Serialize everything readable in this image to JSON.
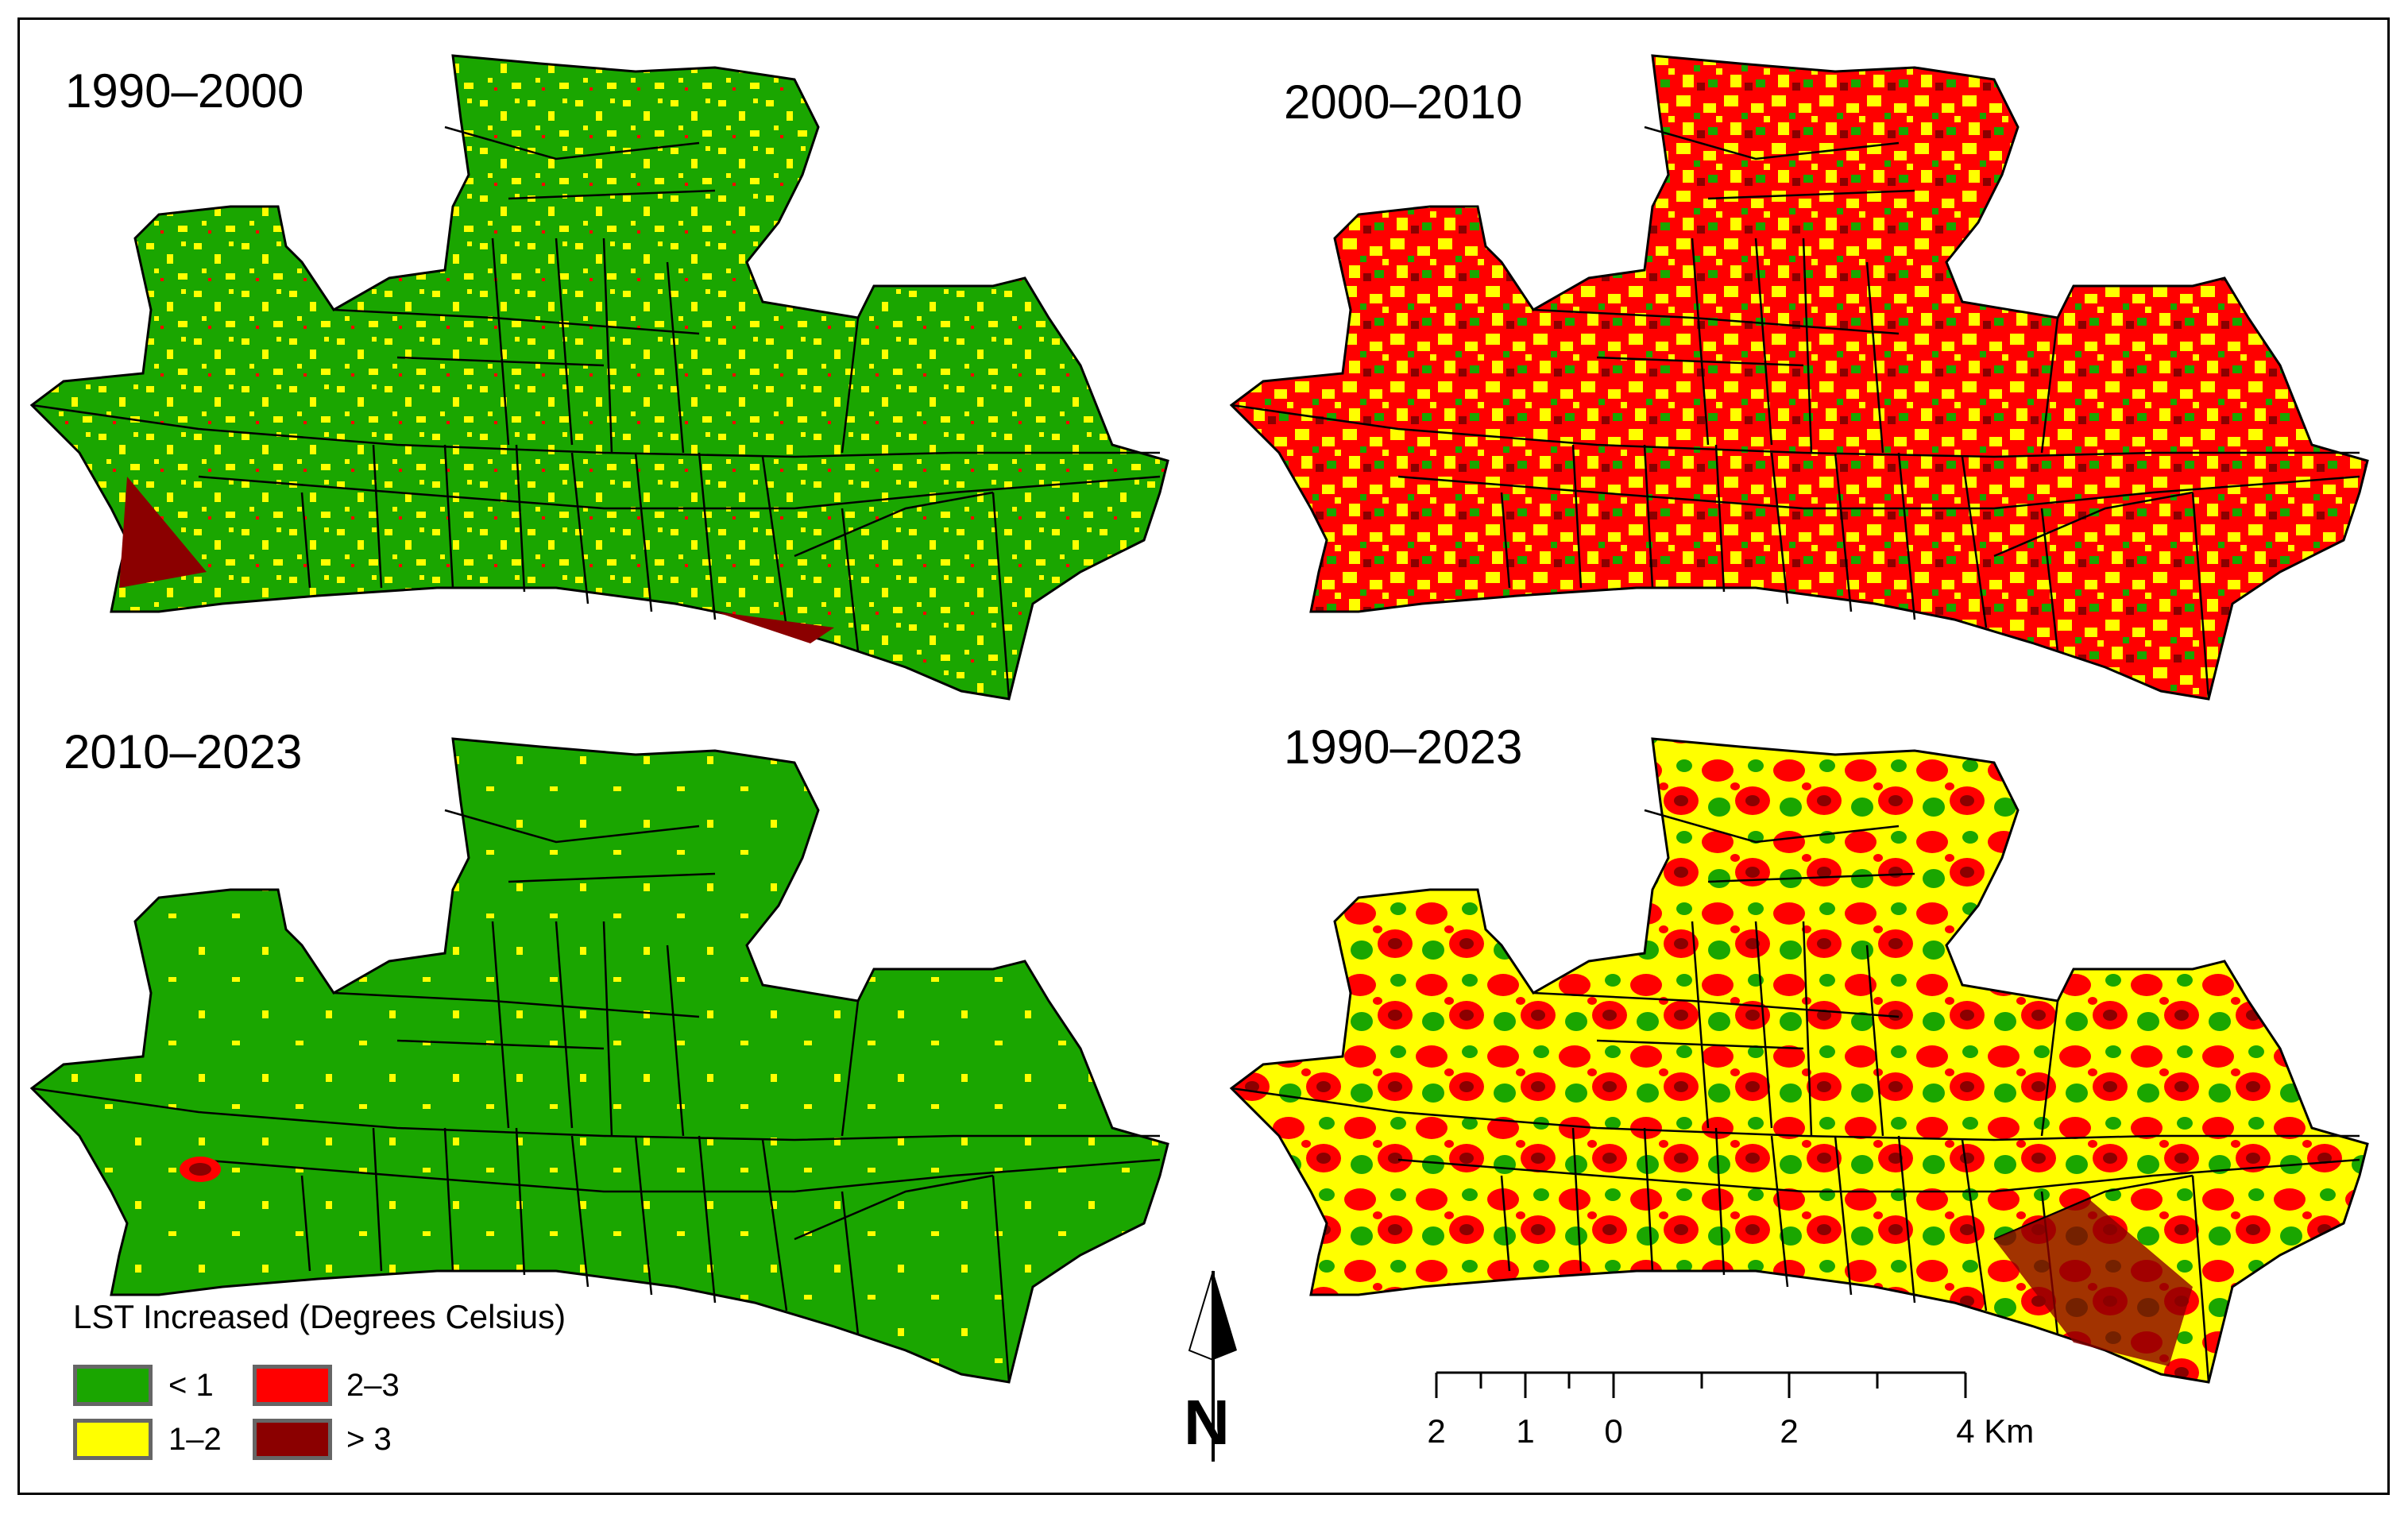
{
  "panels": [
    {
      "title": "1990–2000",
      "pattern": "p1"
    },
    {
      "title": "2000–2010",
      "pattern": "p2"
    },
    {
      "title": "2010–2023",
      "pattern": "p3"
    },
    {
      "title": "1990–2023",
      "pattern": "p4"
    }
  ],
  "legend": {
    "title": "LST Increased (Degrees Celsius)",
    "classes": [
      {
        "label": "< 1",
        "color": "#1aa600"
      },
      {
        "label": "1–2",
        "color": "#ffff00"
      },
      {
        "label": "2–3",
        "color": "#ff0000"
      },
      {
        "label": "> 3",
        "color": "#8b0000"
      }
    ]
  },
  "north_arrow": {
    "label": "N"
  },
  "scale_bar": {
    "labels": [
      "2",
      "1",
      "0",
      "2",
      "4 Km"
    ]
  }
}
